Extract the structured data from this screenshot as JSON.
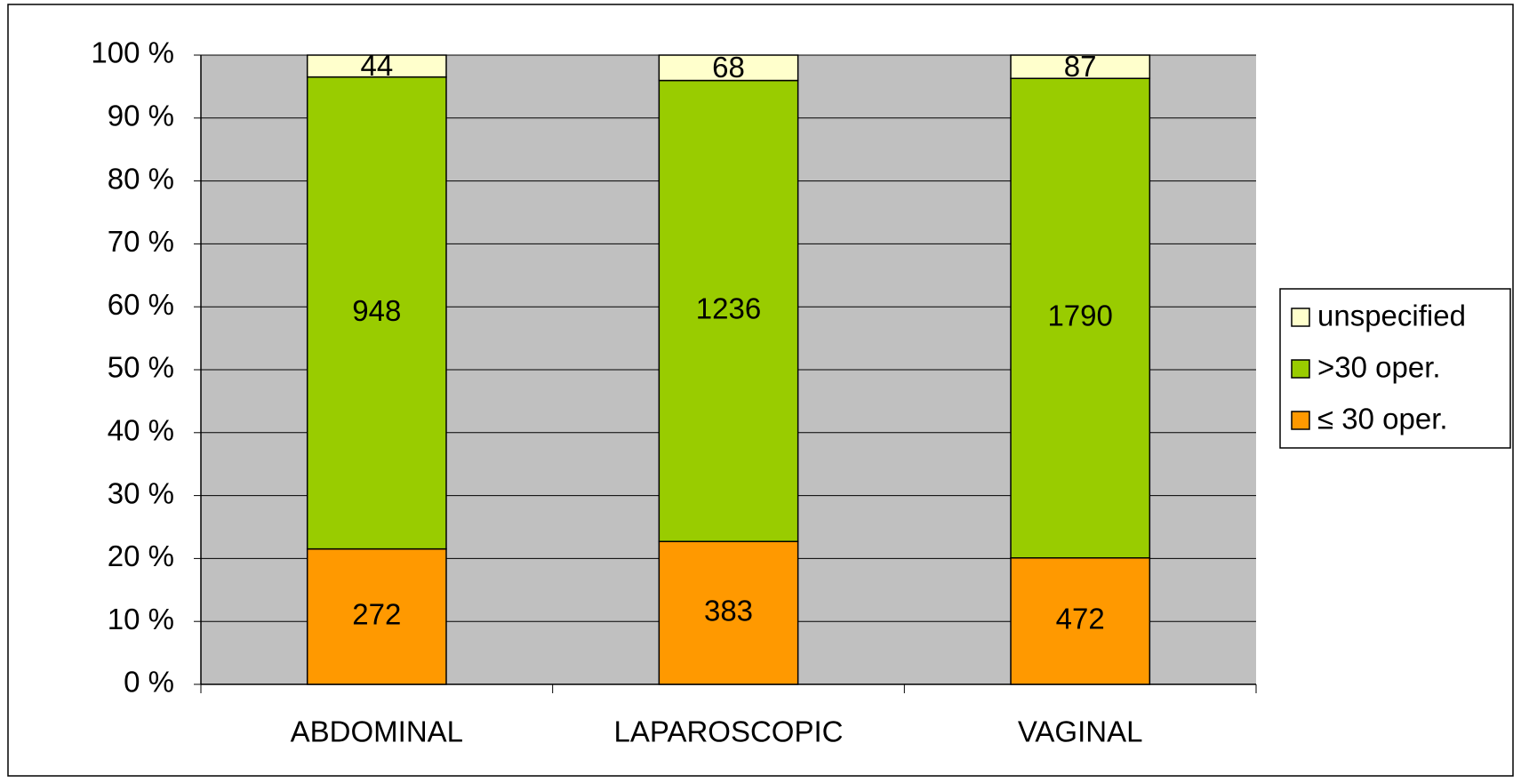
{
  "chart_data": {
    "type": "stacked_bar_percent",
    "categories": [
      "ABDOMINAL",
      "LAPAROSCOPIC",
      "VAGINAL"
    ],
    "series": [
      {
        "name": "≤ 30 oper.",
        "color": "#ff9900",
        "values": [
          272,
          383,
          472
        ]
      },
      {
        "name": ">30 oper.",
        "color": "#99cc00",
        "values": [
          948,
          1236,
          1790
        ]
      },
      {
        "name": "unspecified",
        "color": "#ffffcc",
        "values": [
          44,
          68,
          87
        ]
      }
    ],
    "ylim": [
      0,
      100
    ],
    "yticks": [
      {
        "value": 0,
        "label": "0 %"
      },
      {
        "value": 10,
        "label": "10 %"
      },
      {
        "value": 20,
        "label": "20 %"
      },
      {
        "value": 30,
        "label": "30 %"
      },
      {
        "value": 40,
        "label": "40 %"
      },
      {
        "value": 50,
        "label": "50 %"
      },
      {
        "value": 60,
        "label": "60 %"
      },
      {
        "value": 70,
        "label": "70 %"
      },
      {
        "value": 80,
        "label": "80 %"
      },
      {
        "value": 90,
        "label": "90 %"
      },
      {
        "value": 100,
        "label": "100 %"
      }
    ],
    "grid": true,
    "legend": "right",
    "plot_background": "#c0c0c0"
  }
}
